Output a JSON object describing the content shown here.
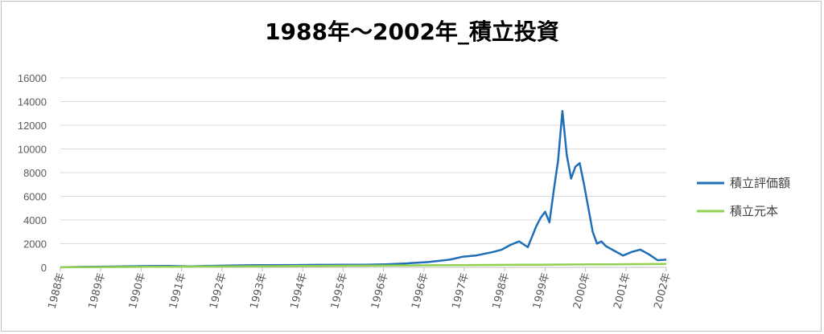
{
  "chart_data": {
    "type": "line",
    "title": "1988年～2002年_積立投資",
    "ylim": [
      0,
      16000
    ],
    "yticks": [
      0,
      2000,
      4000,
      6000,
      8000,
      10000,
      12000,
      14000,
      16000
    ],
    "x_tick_labels": [
      "1988年",
      "1989年",
      "1990年",
      "1991年",
      "1992年",
      "1993年",
      "1994年",
      "1995年",
      "1996年",
      "1996年",
      "1997年",
      "1998年",
      "1999年",
      "2000年",
      "2001年",
      "2002年"
    ],
    "grid": true,
    "legend_position": "right",
    "x": [
      1988.0,
      1988.5,
      1989.0,
      1989.5,
      1990.0,
      1990.5,
      1991.0,
      1991.5,
      1992.0,
      1992.5,
      1993.0,
      1993.5,
      1994.0,
      1994.5,
      1995.0,
      1995.5,
      1996.0,
      1996.5,
      1997.0,
      1997.3,
      1997.6,
      1998.0,
      1998.2,
      1998.4,
      1998.6,
      1998.8,
      1999.0,
      1999.1,
      1999.2,
      1999.3,
      1999.4,
      1999.5,
      1999.6,
      1999.7,
      1999.8,
      1999.9,
      2000.0,
      2000.1,
      2000.2,
      2000.3,
      2000.4,
      2000.5,
      2000.6,
      2000.8,
      2001.0,
      2001.2,
      2001.4,
      2001.6,
      2001.8,
      2002.0
    ],
    "series": [
      {
        "name": "積立評価額",
        "color": "#1f6fb8",
        "values": [
          10,
          40,
          60,
          80,
          110,
          120,
          90,
          130,
          160,
          180,
          190,
          200,
          210,
          215,
          220,
          260,
          330,
          450,
          650,
          900,
          1000,
          1300,
          1500,
          1900,
          2200,
          1700,
          3500,
          4200,
          4700,
          3800,
          6500,
          9000,
          13200,
          9500,
          7500,
          8500,
          8800,
          7000,
          5000,
          3000,
          2000,
          2200,
          1800,
          1400,
          1000,
          1300,
          1500,
          1100,
          600,
          650
        ]
      },
      {
        "name": "積立元本",
        "color": "#92d050",
        "values": [
          5,
          15,
          25,
          35,
          45,
          55,
          65,
          75,
          85,
          95,
          105,
          115,
          125,
          135,
          145,
          155,
          165,
          175,
          185,
          191,
          197,
          205,
          209,
          213,
          217,
          221,
          225,
          227,
          229,
          231,
          233,
          235,
          237,
          239,
          241,
          243,
          245,
          247,
          249,
          251,
          253,
          255,
          257,
          261,
          265,
          269,
          273,
          277,
          281,
          285
        ]
      }
    ]
  },
  "legend": [
    {
      "label": "積立評価額",
      "color": "#1f6fb8"
    },
    {
      "label": "積立元本",
      "color": "#92d050"
    }
  ]
}
